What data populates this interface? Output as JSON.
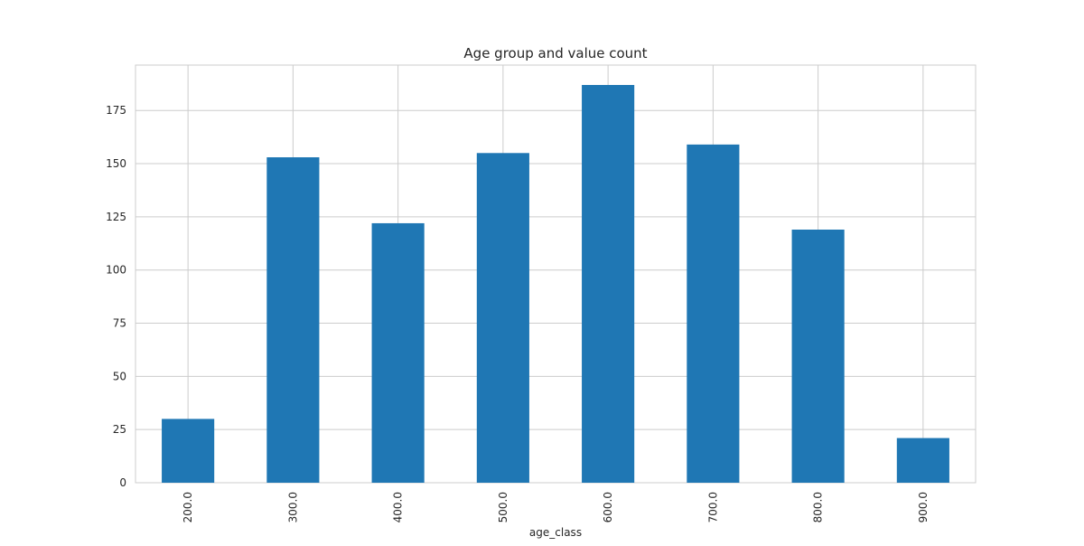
{
  "chart_data": {
    "type": "bar",
    "title": "Age group and value count",
    "xlabel": "age_class",
    "ylabel": "",
    "categories": [
      "200.0",
      "300.0",
      "400.0",
      "500.0",
      "600.0",
      "700.0",
      "800.0",
      "900.0"
    ],
    "values": [
      30,
      153,
      122,
      155,
      187,
      159,
      119,
      21
    ],
    "yticks": [
      0,
      25,
      50,
      75,
      100,
      125,
      150,
      175
    ],
    "ylim": [
      0,
      196.35
    ],
    "grid": true,
    "x_tick_rotation": "vertical",
    "bar_color": "#1f77b4",
    "grid_color": "#cccccc"
  }
}
